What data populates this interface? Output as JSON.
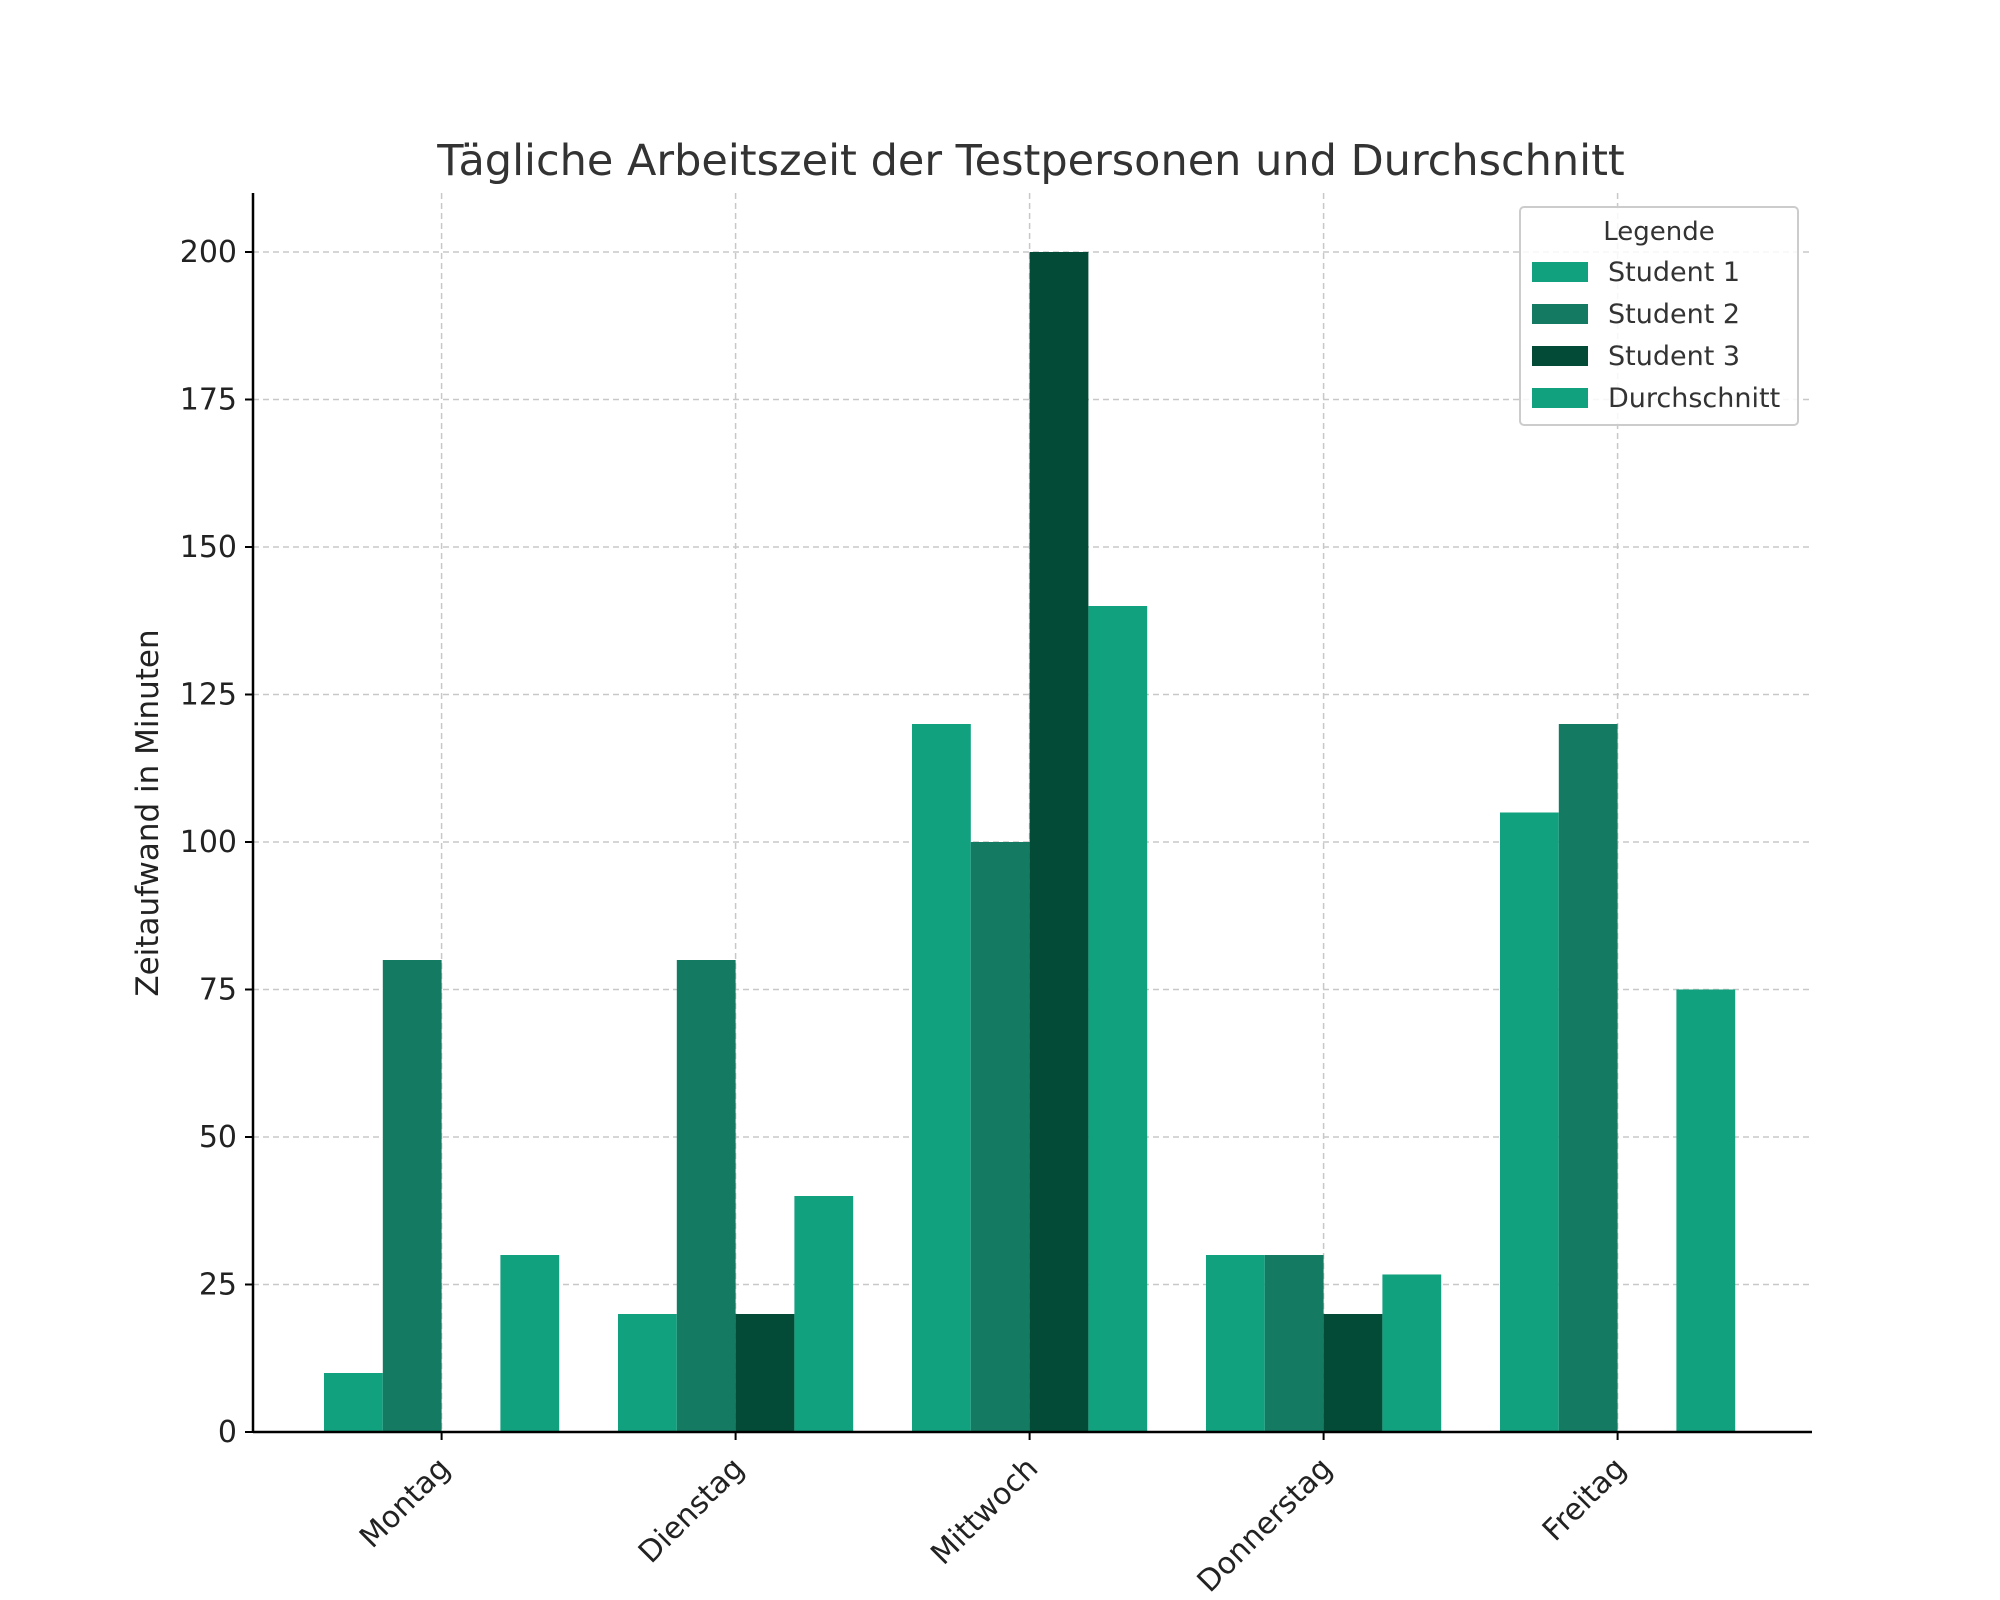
{
  "chart_data": {
    "type": "bar",
    "title": "Tägliche Arbeitszeit der Testpersonen und Durchschnitt",
    "xlabel": "",
    "ylabel": "Zeitaufwand in Minuten",
    "categories": [
      "Montag",
      "Dienstag",
      "Mittwoch",
      "Donnerstag",
      "Freitag"
    ],
    "series": [
      {
        "name": "Student 1",
        "color": "#12a17e",
        "values": [
          10,
          20,
          120,
          30,
          105
        ]
      },
      {
        "name": "Student 2",
        "color": "#147a62",
        "values": [
          80,
          80,
          100,
          30,
          120
        ]
      },
      {
        "name": "Student 3",
        "color": "#034a37",
        "values": [
          0,
          20,
          200,
          20,
          0
        ]
      },
      {
        "name": "Durchschnitt",
        "color": "#12a17e",
        "values": [
          30,
          40,
          140,
          26.7,
          75
        ]
      }
    ],
    "ylim": [
      0,
      210
    ],
    "yticks": [
      "0",
      "25",
      "50",
      "75",
      "100",
      "125",
      "150",
      "175",
      "200"
    ],
    "grid": true,
    "legend": {
      "title": "Legende",
      "placement": "top-right"
    }
  }
}
